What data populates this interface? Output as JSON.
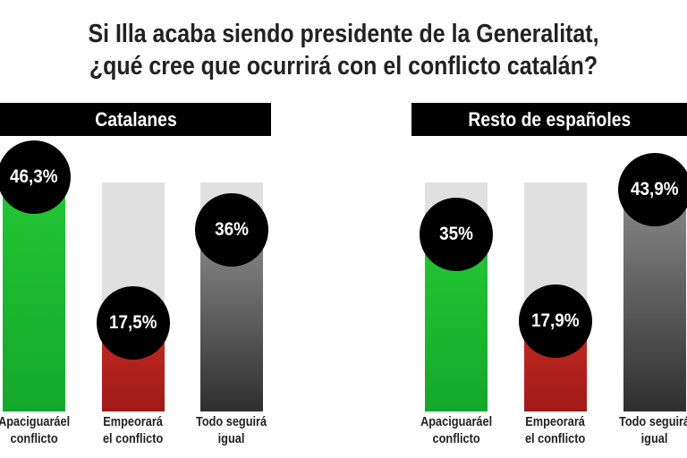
{
  "chart_data": [
    {
      "type": "bar",
      "title": "Si Illa acaba siendo presidente de la Generalitat,\n¿qué cree que ocurrirá con el conflicto catalán?",
      "panel": "Catalanes",
      "categories": [
        "Apaciguaráel conflicto",
        "Empeorará el conflicto",
        "Todo seguirá igual"
      ],
      "values": [
        46.3,
        17.5,
        36
      ],
      "value_labels": [
        "46,3%",
        "17,5%",
        "36%"
      ],
      "colors": [
        "#1fc232",
        "#b51e1b",
        "#3a3a3a"
      ]
    },
    {
      "type": "bar",
      "panel": "Resto de españoles",
      "categories": [
        "Apaciguaráel conflicto",
        "Empeorará el conflicto",
        "Todo seguirá igual"
      ],
      "values": [
        35,
        17.9,
        43.9
      ],
      "value_labels": [
        "35%",
        "17,9%",
        "43,9%"
      ],
      "colors": [
        "#1fc232",
        "#b51e1b",
        "#3a3a3a"
      ]
    }
  ],
  "title_lines": [
    "Si Illa acaba siendo presidente de la Generalitat,",
    "¿qué cree que ocurrirá con el conflicto catalán?"
  ],
  "labels": [
    [
      "Apaciguaráel",
      "conflicto"
    ],
    [
      "Empeorará",
      "el conflicto"
    ],
    [
      "Todo seguirá",
      "igual"
    ]
  ]
}
